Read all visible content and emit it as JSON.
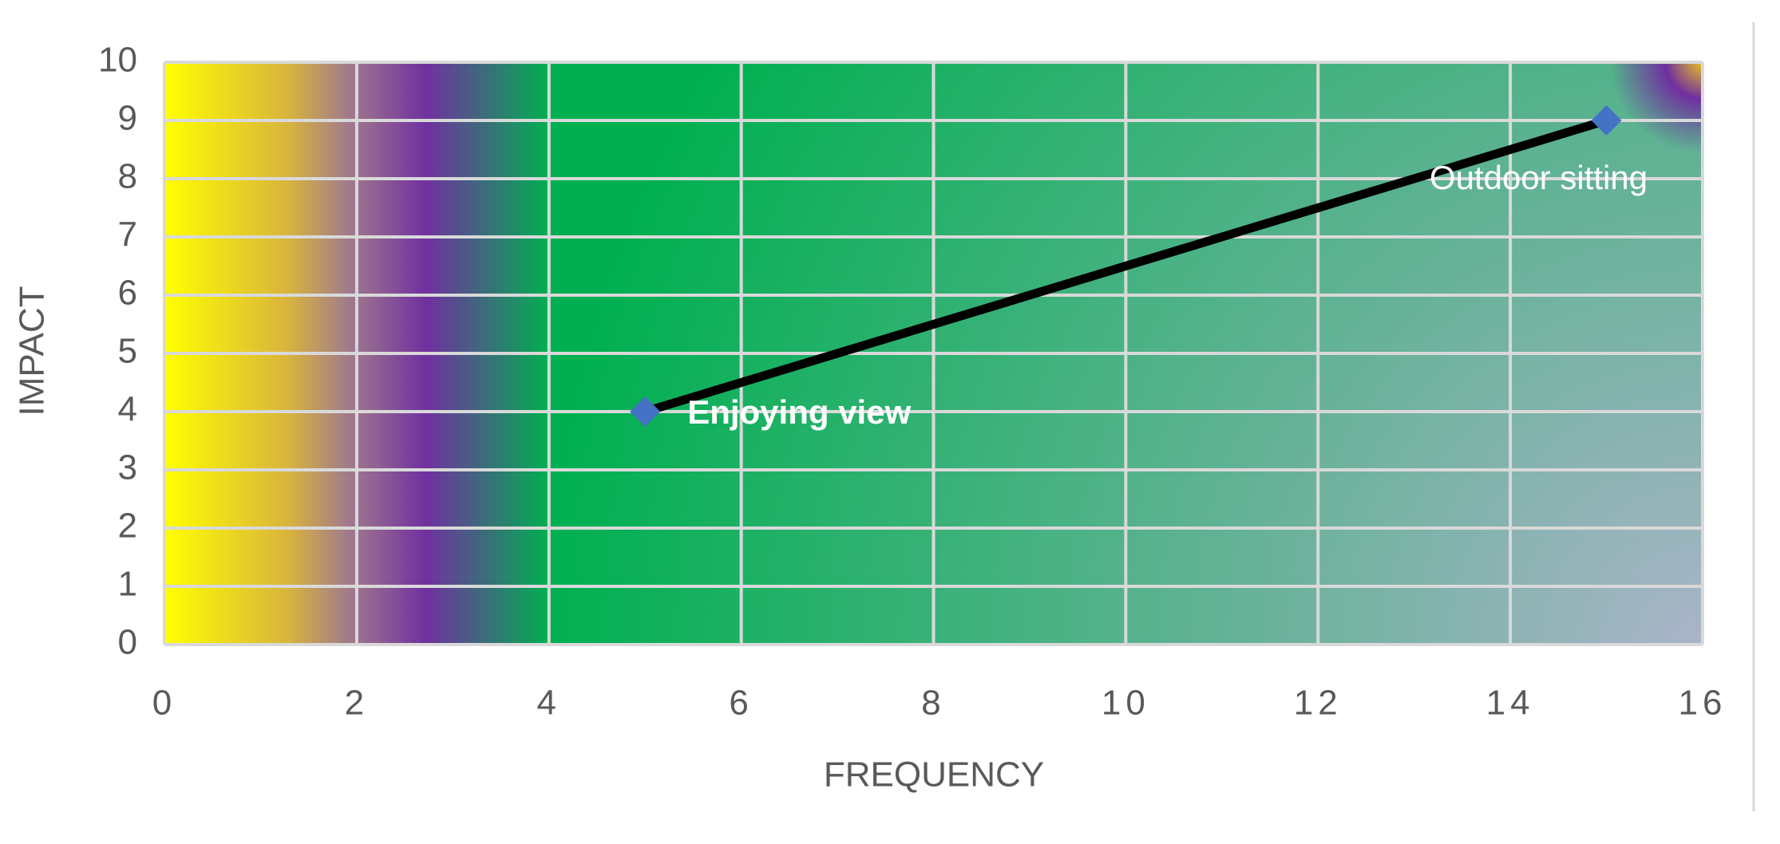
{
  "chart_data": {
    "type": "scatter",
    "x_label": "FREQUENCY",
    "y_label": "IMPACT",
    "x": [
      5,
      15
    ],
    "y": [
      4,
      9
    ],
    "labels": [
      "Enjoying view",
      "Outdoor sitting"
    ],
    "color": "#4472c4",
    "line_color": "#000000",
    "xlim": [
      0,
      16
    ],
    "xticks": [
      0,
      2,
      4,
      6,
      8,
      10,
      12,
      14,
      16
    ],
    "ylim": [
      0,
      10
    ],
    "yticks": [
      0,
      1,
      2,
      3,
      4,
      5,
      6,
      7,
      8,
      9,
      10
    ],
    "grid": true
  }
}
